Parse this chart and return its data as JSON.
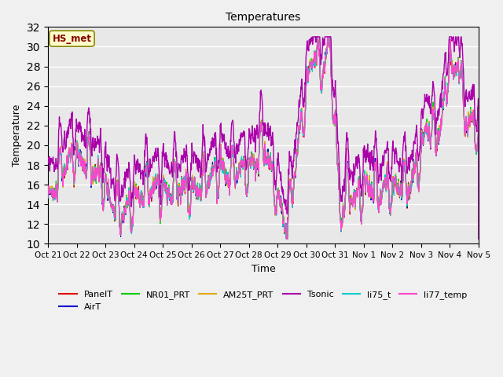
{
  "title": "Temperatures",
  "xlabel": "Time",
  "ylabel": "Temperature",
  "ylim": [
    10,
    32
  ],
  "yticks": [
    10,
    12,
    14,
    16,
    18,
    20,
    22,
    24,
    26,
    28,
    30,
    32
  ],
  "fig_bg": "#f0f0f0",
  "plot_bg": "#e8e8e8",
  "grid_color": "#ffffff",
  "series_colors": {
    "PanelT": "#dd0000",
    "AirT": "#0000cc",
    "NR01_PRT": "#00cc00",
    "AM25T_PRT": "#ddaa00",
    "Tsonic": "#aa00aa",
    "li75_t": "#00cccc",
    "li77_temp": "#ff44cc"
  },
  "legend_order": [
    "PanelT",
    "AirT",
    "NR01_PRT",
    "AM25T_PRT",
    "Tsonic",
    "li75_t",
    "li77_temp"
  ],
  "hs_met_label": "HS_met",
  "hs_met_box_color": "#ffffcc",
  "hs_met_text_color": "#880000",
  "hs_met_border_color": "#888800",
  "tick_labels": [
    "Oct 21",
    "Oct 22",
    "Oct 23",
    "Oct 24",
    "Oct 25",
    "Oct 26",
    "Oct 27",
    "Oct 28",
    "Oct 29",
    "Oct 30",
    "Oct 31",
    "Nov 1",
    "Nov 2",
    "Nov 3",
    "Nov 4",
    "Nov 5"
  ],
  "n_points": 1440,
  "n_days": 15
}
